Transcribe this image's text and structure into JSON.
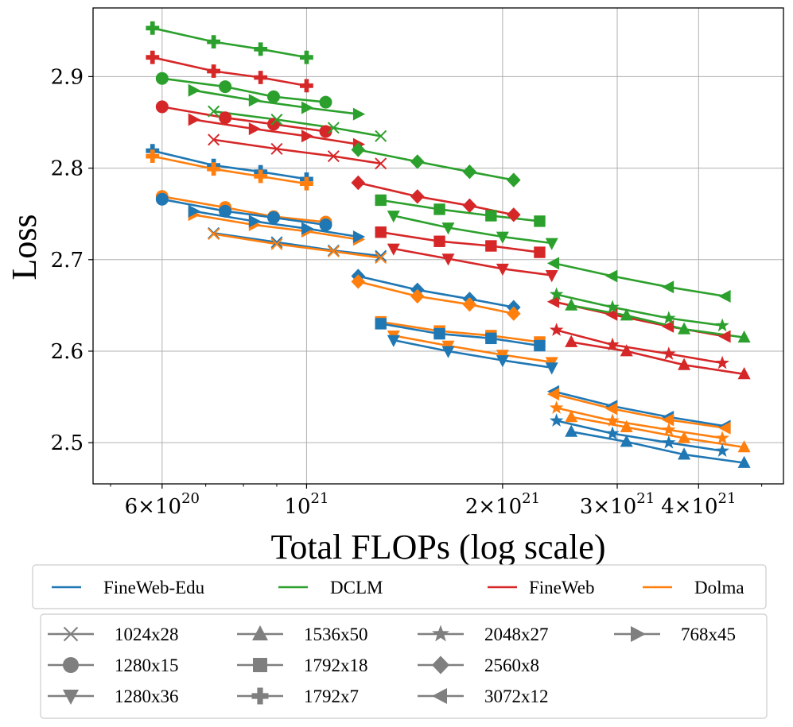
{
  "chart_data": {
    "type": "line",
    "xlabel": "Total FLOPs (log scale)",
    "ylabel": "Loss",
    "xscale": "log",
    "xlim": [
      4.7e+20,
      5.4e+21
    ],
    "ylim": [
      2.455,
      2.975
    ],
    "x_ticks": [
      {
        "value": 6e+20,
        "mantissa": "6",
        "exp": "20"
      },
      {
        "value": 1e+21,
        "mantissa": "",
        "exp": "21"
      },
      {
        "value": 2e+21,
        "mantissa": "2",
        "exp": "21"
      },
      {
        "value": 3e+21,
        "mantissa": "3",
        "exp": "21"
      },
      {
        "value": 4e+21,
        "mantissa": "4",
        "exp": "21"
      }
    ],
    "y_ticks": [
      {
        "value": 2.5,
        "label": "2.5"
      },
      {
        "value": 2.6,
        "label": "2.6"
      },
      {
        "value": 2.7,
        "label": "2.7"
      },
      {
        "value": 2.8,
        "label": "2.8"
      },
      {
        "value": 2.9,
        "label": "2.9"
      }
    ],
    "grid": true,
    "datasets": [
      {
        "name": "FineWeb-Edu",
        "color": "#1f77b4"
      },
      {
        "name": "DCLM",
        "color": "#2ca02c"
      },
      {
        "name": "FineWeb",
        "color": "#d62728"
      },
      {
        "name": "Dolma",
        "color": "#ff7f0e"
      }
    ],
    "shapes": [
      {
        "name": "1024x28",
        "marker": "x"
      },
      {
        "name": "1280x15",
        "marker": "circle"
      },
      {
        "name": "1280x36",
        "marker": "triangle-down"
      },
      {
        "name": "1536x50",
        "marker": "triangle-up"
      },
      {
        "name": "1792x18",
        "marker": "square"
      },
      {
        "name": "1792x7",
        "marker": "plus"
      },
      {
        "name": "2048x27",
        "marker": "star"
      },
      {
        "name": "2560x8",
        "marker": "diamond"
      },
      {
        "name": "3072x12",
        "marker": "triangle-left"
      },
      {
        "name": "768x45",
        "marker": "triangle-right"
      }
    ],
    "legend_placement": "below plot",
    "series": [
      {
        "dataset": "DCLM",
        "shape": "1792x7",
        "x": [
          5.8e+20,
          7.2e+20,
          8.5e+20,
          1e+21
        ],
        "y": [
          2.953,
          2.938,
          2.93,
          2.921
        ]
      },
      {
        "dataset": "FineWeb",
        "shape": "1792x7",
        "x": [
          5.8e+20,
          7.2e+20,
          8.5e+20,
          1e+21
        ],
        "y": [
          2.921,
          2.906,
          2.899,
          2.89
        ]
      },
      {
        "dataset": "FineWeb-Edu",
        "shape": "1792x7",
        "x": [
          5.8e+20,
          7.2e+20,
          8.5e+20,
          1e+21
        ],
        "y": [
          2.819,
          2.803,
          2.796,
          2.788
        ]
      },
      {
        "dataset": "Dolma",
        "shape": "1792x7",
        "x": [
          5.8e+20,
          7.2e+20,
          8.5e+20,
          1e+21
        ],
        "y": [
          2.813,
          2.799,
          2.791,
          2.783
        ]
      },
      {
        "dataset": "DCLM",
        "shape": "1280x15",
        "x": [
          6e+20,
          7.5e+20,
          8.9e+20,
          1.07e+21
        ],
        "y": [
          2.898,
          2.889,
          2.878,
          2.872
        ]
      },
      {
        "dataset": "FineWeb",
        "shape": "1280x15",
        "x": [
          6e+20,
          7.5e+20,
          8.9e+20,
          1.07e+21
        ],
        "y": [
          2.867,
          2.855,
          2.848,
          2.84
        ]
      },
      {
        "dataset": "Dolma",
        "shape": "1280x15",
        "x": [
          6e+20,
          7.5e+20,
          8.9e+20,
          1.07e+21
        ],
        "y": [
          2.769,
          2.757,
          2.747,
          2.741
        ]
      },
      {
        "dataset": "FineWeb-Edu",
        "shape": "1280x15",
        "x": [
          6e+20,
          7.5e+20,
          8.9e+20,
          1.07e+21
        ],
        "y": [
          2.766,
          2.753,
          2.746,
          2.738
        ]
      },
      {
        "dataset": "DCLM",
        "shape": "768x45",
        "x": [
          6.7e+20,
          8.3e+20,
          1e+21,
          1.2e+21
        ],
        "y": [
          2.885,
          2.874,
          2.866,
          2.859
        ]
      },
      {
        "dataset": "FineWeb",
        "shape": "768x45",
        "x": [
          6.7e+20,
          8.3e+20,
          1e+21,
          1.2e+21
        ],
        "y": [
          2.853,
          2.843,
          2.835,
          2.826
        ]
      },
      {
        "dataset": "Dolma",
        "shape": "768x45",
        "x": [
          6.7e+20,
          8.3e+20,
          1e+21,
          1.2e+21
        ],
        "y": [
          2.749,
          2.738,
          2.731,
          2.722
        ]
      },
      {
        "dataset": "FineWeb-Edu",
        "shape": "768x45",
        "x": [
          6.7e+20,
          8.3e+20,
          1e+21,
          1.2e+21
        ],
        "y": [
          2.753,
          2.742,
          2.734,
          2.725
        ]
      },
      {
        "dataset": "DCLM",
        "shape": "1024x28",
        "x": [
          7.2e+20,
          9e+20,
          1.1e+21,
          1.3e+21
        ],
        "y": [
          2.862,
          2.853,
          2.844,
          2.835
        ]
      },
      {
        "dataset": "FineWeb",
        "shape": "1024x28",
        "x": [
          7.2e+20,
          9e+20,
          1.1e+21,
          1.3e+21
        ],
        "y": [
          2.831,
          2.821,
          2.813,
          2.805
        ]
      },
      {
        "dataset": "FineWeb-Edu",
        "shape": "1024x28",
        "x": [
          7.2e+20,
          9e+20,
          1.1e+21,
          1.3e+21
        ],
        "y": [
          2.729,
          2.719,
          2.71,
          2.704
        ]
      },
      {
        "dataset": "Dolma",
        "shape": "1024x28",
        "x": [
          7.2e+20,
          9e+20,
          1.1e+21,
          1.3e+21
        ],
        "y": [
          2.728,
          2.717,
          2.709,
          2.702
        ]
      },
      {
        "dataset": "DCLM",
        "shape": "2560x8",
        "x": [
          1.2e+21,
          1.48e+21,
          1.78e+21,
          2.08e+21
        ],
        "y": [
          2.82,
          2.807,
          2.796,
          2.787
        ]
      },
      {
        "dataset": "FineWeb",
        "shape": "2560x8",
        "x": [
          1.2e+21,
          1.48e+21,
          1.78e+21,
          2.08e+21
        ],
        "y": [
          2.784,
          2.769,
          2.759,
          2.749
        ]
      },
      {
        "dataset": "FineWeb-Edu",
        "shape": "2560x8",
        "x": [
          1.2e+21,
          1.48e+21,
          1.78e+21,
          2.08e+21
        ],
        "y": [
          2.682,
          2.667,
          2.657,
          2.648
        ]
      },
      {
        "dataset": "Dolma",
        "shape": "2560x8",
        "x": [
          1.2e+21,
          1.48e+21,
          1.78e+21,
          2.08e+21
        ],
        "y": [
          2.676,
          2.66,
          2.651,
          2.641
        ]
      },
      {
        "dataset": "DCLM",
        "shape": "1792x18",
        "x": [
          1.3e+21,
          1.6e+21,
          1.92e+21,
          2.28e+21
        ],
        "y": [
          2.765,
          2.755,
          2.748,
          2.742
        ]
      },
      {
        "dataset": "FineWeb",
        "shape": "1792x18",
        "x": [
          1.3e+21,
          1.6e+21,
          1.92e+21,
          2.28e+21
        ],
        "y": [
          2.73,
          2.72,
          2.715,
          2.708
        ]
      },
      {
        "dataset": "Dolma",
        "shape": "1792x18",
        "x": [
          1.3e+21,
          1.6e+21,
          1.92e+21,
          2.28e+21
        ],
        "y": [
          2.632,
          2.622,
          2.617,
          2.61
        ]
      },
      {
        "dataset": "FineWeb-Edu",
        "shape": "1792x18",
        "x": [
          1.3e+21,
          1.6e+21,
          1.92e+21,
          2.28e+21
        ],
        "y": [
          2.63,
          2.619,
          2.614,
          2.606
        ]
      },
      {
        "dataset": "DCLM",
        "shape": "1280x36",
        "x": [
          1.36e+21,
          1.65e+21,
          2e+21,
          2.38e+21
        ],
        "y": [
          2.748,
          2.735,
          2.725,
          2.718
        ]
      },
      {
        "dataset": "FineWeb",
        "shape": "1280x36",
        "x": [
          1.36e+21,
          1.65e+21,
          2e+21,
          2.38e+21
        ],
        "y": [
          2.712,
          2.701,
          2.69,
          2.683
        ]
      },
      {
        "dataset": "Dolma",
        "shape": "1280x36",
        "x": [
          1.36e+21,
          1.65e+21,
          2e+21,
          2.38e+21
        ],
        "y": [
          2.617,
          2.606,
          2.596,
          2.588
        ]
      },
      {
        "dataset": "FineWeb-Edu",
        "shape": "1280x36",
        "x": [
          1.36e+21,
          1.65e+21,
          2e+21,
          2.38e+21
        ],
        "y": [
          2.612,
          2.6,
          2.59,
          2.582
        ]
      },
      {
        "dataset": "DCLM",
        "shape": "3072x12",
        "x": [
          2.4e+21,
          2.95e+21,
          3.6e+21,
          4.4e+21
        ],
        "y": [
          2.696,
          2.682,
          2.67,
          2.66
        ]
      },
      {
        "dataset": "FineWeb",
        "shape": "3072x12",
        "x": [
          2.4e+21,
          2.95e+21,
          3.6e+21,
          4.4e+21
        ],
        "y": [
          2.654,
          2.64,
          2.627,
          2.616
        ]
      },
      {
        "dataset": "FineWeb-Edu",
        "shape": "3072x12",
        "x": [
          2.4e+21,
          2.95e+21,
          3.6e+21,
          4.4e+21
        ],
        "y": [
          2.556,
          2.54,
          2.528,
          2.518
        ]
      },
      {
        "dataset": "Dolma",
        "shape": "3072x12",
        "x": [
          2.4e+21,
          2.95e+21,
          3.6e+21,
          4.4e+21
        ],
        "y": [
          2.553,
          2.537,
          2.525,
          2.516
        ]
      },
      {
        "dataset": "DCLM",
        "shape": "2048x27",
        "x": [
          2.42e+21,
          2.95e+21,
          3.6e+21,
          4.35e+21
        ],
        "y": [
          2.662,
          2.648,
          2.636,
          2.628
        ]
      },
      {
        "dataset": "FineWeb",
        "shape": "2048x27",
        "x": [
          2.42e+21,
          2.95e+21,
          3.6e+21,
          4.35e+21
        ],
        "y": [
          2.623,
          2.607,
          2.597,
          2.587
        ]
      },
      {
        "dataset": "Dolma",
        "shape": "2048x27",
        "x": [
          2.42e+21,
          2.95e+21,
          3.6e+21,
          4.35e+21
        ],
        "y": [
          2.538,
          2.524,
          2.514,
          2.505
        ]
      },
      {
        "dataset": "FineWeb-Edu",
        "shape": "2048x27",
        "x": [
          2.42e+21,
          2.95e+21,
          3.6e+21,
          4.35e+21
        ],
        "y": [
          2.524,
          2.51,
          2.5,
          2.491
        ]
      },
      {
        "dataset": "DCLM",
        "shape": "1536x50",
        "x": [
          2.55e+21,
          3.1e+21,
          3.8e+21,
          4.7e+21
        ],
        "y": [
          2.65,
          2.639,
          2.624,
          2.615
        ]
      },
      {
        "dataset": "FineWeb",
        "shape": "1536x50",
        "x": [
          2.55e+21,
          3.1e+21,
          3.8e+21,
          4.7e+21
        ],
        "y": [
          2.61,
          2.6,
          2.585,
          2.575
        ]
      },
      {
        "dataset": "Dolma",
        "shape": "1536x50",
        "x": [
          2.55e+21,
          3.1e+21,
          3.8e+21,
          4.7e+21
        ],
        "y": [
          2.528,
          2.517,
          2.505,
          2.495
        ]
      },
      {
        "dataset": "FineWeb-Edu",
        "shape": "1536x50",
        "x": [
          2.55e+21,
          3.1e+21,
          3.8e+21,
          4.7e+21
        ],
        "y": [
          2.512,
          2.501,
          2.487,
          2.478
        ]
      }
    ]
  }
}
